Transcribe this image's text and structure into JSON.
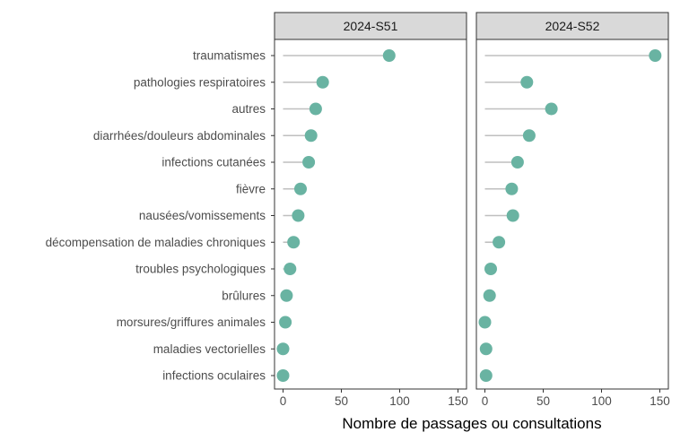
{
  "chart_data": {
    "type": "lollipop",
    "xlabel": "Nombre de passages ou consultations",
    "xlim": [
      0,
      150
    ],
    "xticks": [
      0,
      50,
      100,
      150
    ],
    "categories": [
      "traumatismes",
      "pathologies respiratoires",
      "autres",
      "diarrhées/douleurs abdominales",
      "infections cutanées",
      "fièvre",
      "nausées/vomissements",
      "décompensation de maladies chroniques",
      "troubles psychologiques",
      "brûlures",
      "morsures/griffures animales",
      "maladies vectorielles",
      "infections oculaires"
    ],
    "panels": [
      {
        "name": "2024-S51",
        "values": [
          91,
          34,
          28,
          24,
          22,
          15,
          13,
          9,
          6,
          3,
          2,
          0,
          0
        ]
      },
      {
        "name": "2024-S52",
        "values": [
          146,
          36,
          57,
          38,
          28,
          23,
          24,
          12,
          5,
          4,
          0,
          1,
          1
        ]
      }
    ],
    "colors": {
      "point": "#69b3a2",
      "stem": "#bfbfbf",
      "strip": "#d9d9d9",
      "frame": "#333333"
    },
    "grid": false
  }
}
